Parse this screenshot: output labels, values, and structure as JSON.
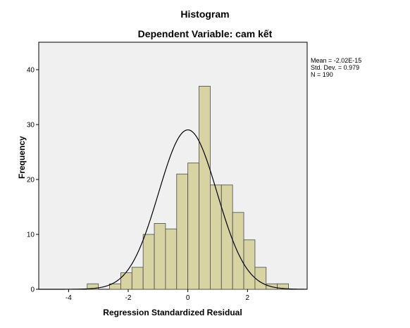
{
  "chart_data": {
    "type": "bar",
    "title": "Histogram",
    "subtitle": "Dependent Variable: cam kết",
    "xlabel": "Regression Standardized Residual",
    "ylabel": "Frequency",
    "xlim": [
      -5,
      4
    ],
    "ylim": [
      0,
      45
    ],
    "x_ticks": [
      "-4",
      "-2",
      "0",
      "2"
    ],
    "x_tick_values": [
      -4,
      -2,
      0,
      2
    ],
    "y_ticks": [
      "0",
      "10",
      "20",
      "30",
      "40"
    ],
    "y_tick_values": [
      0,
      10,
      20,
      30,
      40
    ],
    "bin_width": 0.375,
    "bins": [
      {
        "start": -3.375,
        "count": 1
      },
      {
        "start": -3.0,
        "count": 0
      },
      {
        "start": -2.625,
        "count": 1
      },
      {
        "start": -2.25,
        "count": 3
      },
      {
        "start": -1.875,
        "count": 4
      },
      {
        "start": -1.5,
        "count": 10
      },
      {
        "start": -1.125,
        "count": 12
      },
      {
        "start": -0.75,
        "count": 11
      },
      {
        "start": -0.375,
        "count": 21
      },
      {
        "start": 0.0,
        "count": 23
      },
      {
        "start": 0.375,
        "count": 37
      },
      {
        "start": 0.75,
        "count": 19
      },
      {
        "start": 1.125,
        "count": 19
      },
      {
        "start": 1.5,
        "count": 14
      },
      {
        "start": 1.875,
        "count": 9
      },
      {
        "start": 2.25,
        "count": 4
      },
      {
        "start": 2.625,
        "count": 1
      },
      {
        "start": 3.0,
        "count": 1
      }
    ],
    "normal_curve": {
      "mean": 0,
      "sd": 0.979,
      "n": 190
    },
    "stats": {
      "mean": "Mean = -2.02E-15",
      "std_dev": "Std. Dev. = 0.979",
      "n": "N = 190"
    },
    "colors": {
      "bar_fill": "#d8d3a3",
      "bar_stroke": "#4a4a4a",
      "plot_bg": "#f0f0f0",
      "curve": "#000000"
    }
  }
}
